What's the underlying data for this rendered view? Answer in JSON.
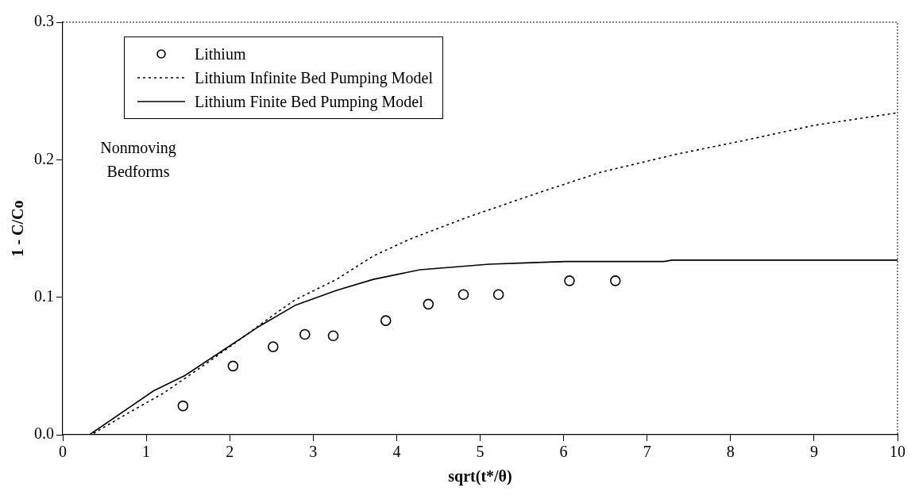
{
  "chart_data": {
    "type": "scatter",
    "xlabel": "sqrt(t*/θ)",
    "ylabel": "1 - C/Co",
    "xlim": [
      0,
      10
    ],
    "ylim": [
      0,
      0.3
    ],
    "xticks": [
      0,
      1,
      2,
      3,
      4,
      5,
      6,
      7,
      8,
      9,
      10
    ],
    "yticks": [
      {
        "value": 0,
        "label": "0.0"
      },
      0.1,
      0.2,
      0.3
    ],
    "grid": false,
    "legend": "top left",
    "annotations": [
      "Nonmoving\nBedforms"
    ],
    "series": [
      {
        "name": "Lithium",
        "marker": "circle",
        "color": "#000000",
        "x": [
          1.44,
          2.04,
          2.52,
          2.9,
          3.24,
          3.87,
          4.38,
          4.8,
          5.22,
          6.07,
          6.62
        ],
        "values": [
          0.021,
          0.05,
          0.064,
          0.073,
          0.072,
          0.083,
          0.095,
          0.102,
          0.102,
          0.112,
          0.112
        ]
      },
      {
        "name": "Lithium Infinite Bed Pumping Model",
        "type": "line",
        "marker": "none",
        "line_style": "dotted",
        "color": "#000000",
        "x": [
          0.37,
          0.76,
          1.2,
          1.63,
          2.07,
          2.5,
          2.78,
          3.28,
          3.72,
          4.15,
          4.84,
          5.7,
          6.45,
          7.35,
          8.24,
          9.0,
          9.55,
          9.98
        ],
        "values": [
          0.001,
          0.015,
          0.03,
          0.048,
          0.067,
          0.086,
          0.098,
          0.113,
          0.13,
          0.142,
          0.158,
          0.176,
          0.191,
          0.204,
          0.215,
          0.225,
          0.23,
          0.234
        ]
      },
      {
        "name": "Lithium Finite Bed Pumping Model",
        "type": "line",
        "marker": "none",
        "line_style": "solid",
        "color": "#000000",
        "x": [
          0.32,
          1.09,
          1.46,
          1.91,
          2.33,
          2.78,
          3.28,
          3.72,
          4.28,
          5.11,
          5.54,
          6.02,
          7.2,
          7.3,
          10
        ],
        "values": [
          0,
          0.032,
          0.043,
          0.061,
          0.078,
          0.094,
          0.105,
          0.113,
          0.12,
          0.124,
          0.125,
          0.126,
          0.126,
          0.127,
          0.127
        ]
      }
    ]
  }
}
